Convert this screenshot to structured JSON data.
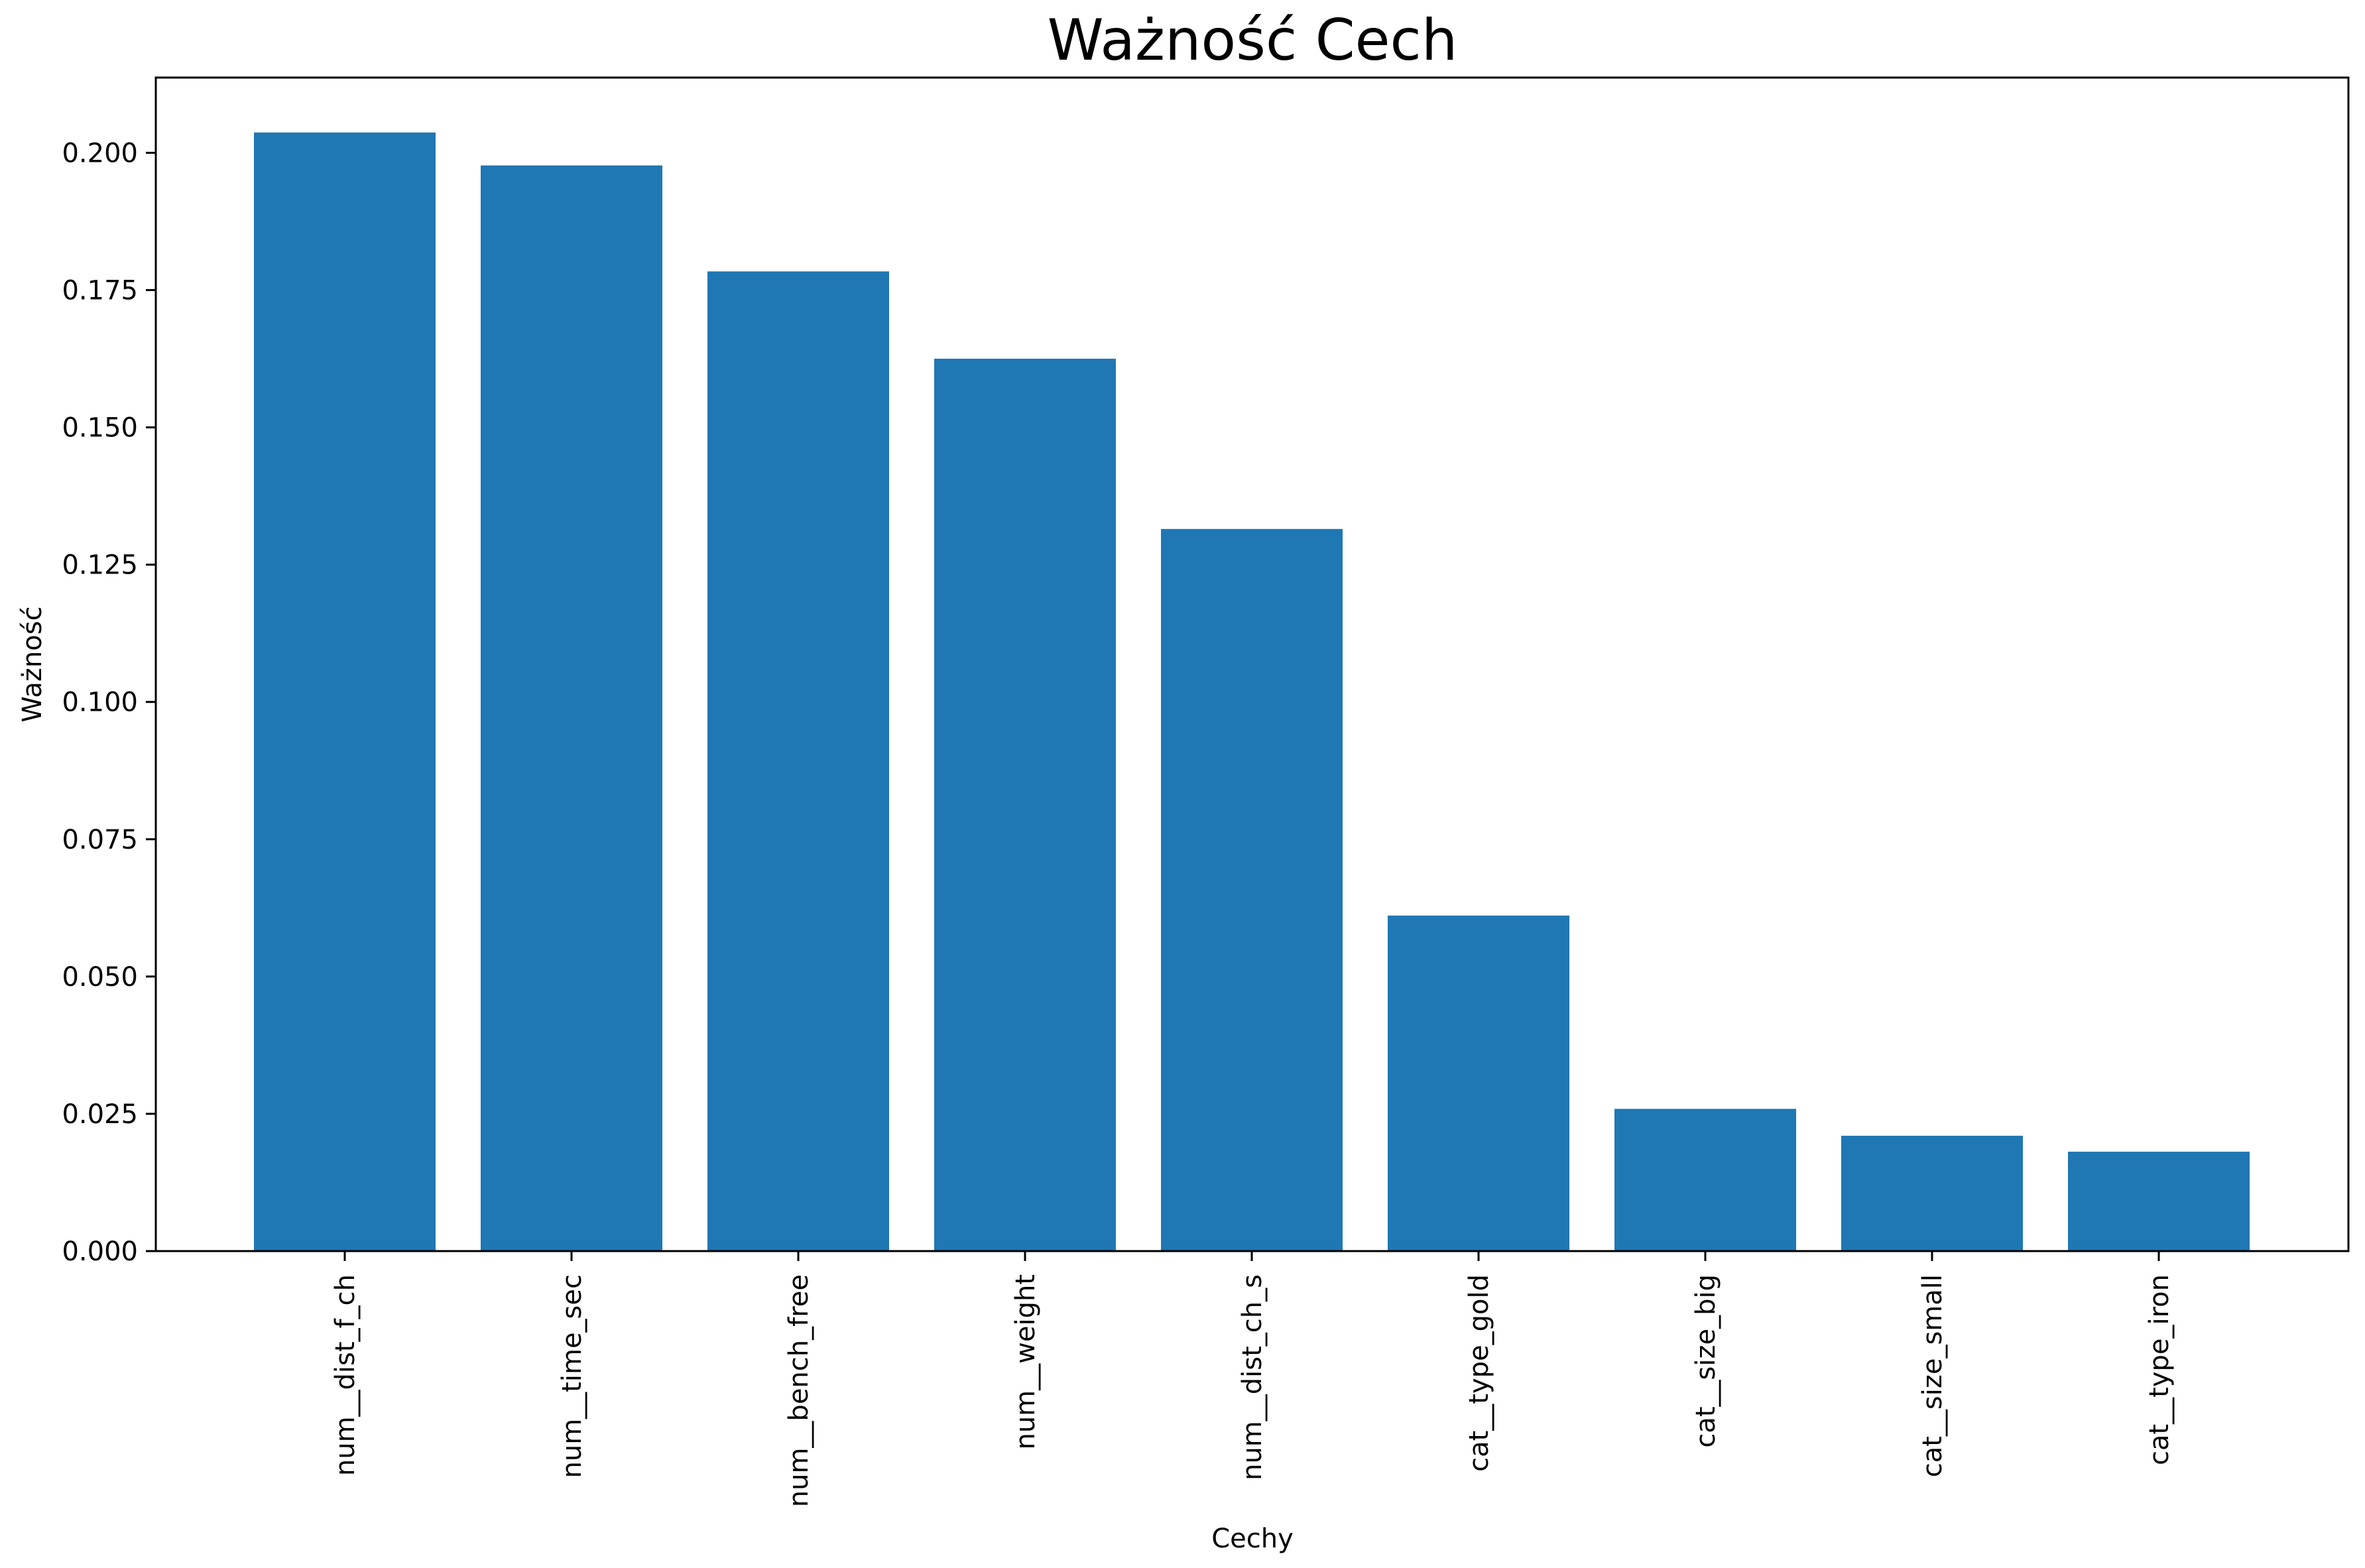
{
  "chart_data": {
    "type": "bar",
    "title": "Ważność Cech",
    "xlabel": "Cechy",
    "ylabel": "Ważność",
    "categories": [
      "num__dist_f_ch",
      "num__time_sec",
      "num__bench_free",
      "num__weight",
      "num__dist_ch_s",
      "cat__type_gold",
      "cat__size_big",
      "cat__size_small",
      "cat__type_iron"
    ],
    "values": [
      0.2037,
      0.1977,
      0.1784,
      0.1625,
      0.1315,
      0.0611,
      0.0259,
      0.021,
      0.0181
    ],
    "ylim": [
      0,
      0.2137
    ],
    "yticks": [
      "0.000",
      "0.025",
      "0.050",
      "0.075",
      "0.100",
      "0.125",
      "0.150",
      "0.175",
      "0.200"
    ],
    "ytick_values": [
      0,
      0.025,
      0.05,
      0.075,
      0.1,
      0.125,
      0.15,
      0.175,
      0.2
    ],
    "grid": false,
    "bar_color": "#1f77b4"
  }
}
